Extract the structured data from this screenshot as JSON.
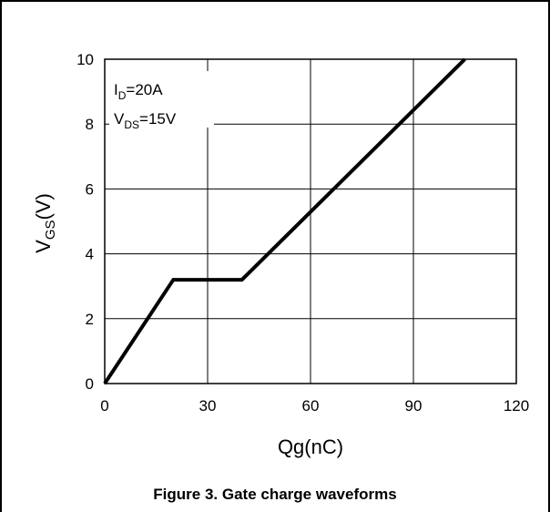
{
  "caption": "Figure 3. Gate charge waveforms",
  "chart_data": {
    "type": "line",
    "xlabel": "Qg(nC)",
    "ylabel_main": "V",
    "ylabel_sub": "GS",
    "ylabel_tail": "(V)",
    "xlim": [
      0,
      120
    ],
    "ylim": [
      0,
      10
    ],
    "x_ticks": [
      0,
      30,
      60,
      90,
      120
    ],
    "y_ticks": [
      0,
      2,
      4,
      6,
      8,
      10
    ],
    "grid": true,
    "series": [
      {
        "x": [
          0,
          20,
          40,
          105
        ],
        "y": [
          0,
          3.2,
          3.2,
          10
        ]
      }
    ],
    "annotations": {
      "line1_main": "I",
      "line1_sub": "D",
      "line1_tail": "=20A",
      "line2_main": "V",
      "line2_sub": "DS",
      "line2_tail": "=15V"
    },
    "colors": {
      "line": "#000000",
      "grid": "#000000"
    }
  }
}
